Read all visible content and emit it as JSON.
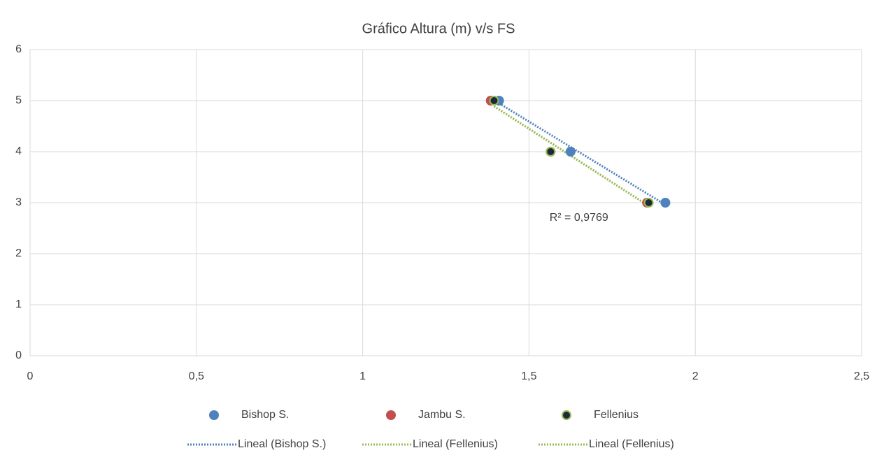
{
  "chart_data": {
    "type": "scatter",
    "title": "Gráfico Altura (m) v/s FS",
    "xlim": [
      0,
      2.5
    ],
    "xticks": [
      0,
      {
        "value": 0.5,
        "label": "0,5"
      },
      1,
      {
        "value": 1.5,
        "label": "1,5"
      },
      2,
      {
        "value": 2.5,
        "label": "2,5"
      }
    ],
    "ylim": [
      0,
      6
    ],
    "yticks": [
      0,
      1,
      2,
      3,
      4,
      5,
      6
    ],
    "grid": true,
    "series": [
      {
        "name": "Bishop S.",
        "color": "#4f81bd",
        "x": [
          1.41,
          1.625,
          1.91
        ],
        "values": [
          5,
          4,
          3
        ]
      },
      {
        "name": "Jambu S.",
        "color": "#c0504d",
        "x": [
          1.385,
          1.565,
          1.855
        ],
        "values": [
          5,
          4,
          3
        ]
      },
      {
        "name": "Fellenius",
        "color": "#1b2a3a",
        "edge": "#9bbb59",
        "x": [
          1.395,
          1.565,
          1.86
        ],
        "values": [
          5,
          4,
          3
        ]
      }
    ],
    "trendlines": [
      {
        "name": "Lineal (Bishop S.)",
        "series": 0,
        "color": "#4f81bd"
      },
      {
        "name": "Lineal (Fellenius)",
        "series": 2,
        "color": "#9bbb59"
      },
      {
        "name": "Lineal (Fellenius)",
        "series": 2,
        "color": "#9bbb59"
      }
    ],
    "annotation": {
      "text": "R² = 0,9769",
      "x": 1.65,
      "y": 2.7
    },
    "legend": "bottom"
  }
}
